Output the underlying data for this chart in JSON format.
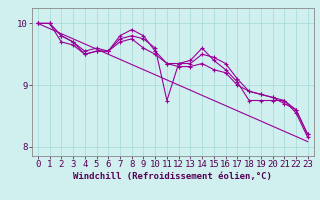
{
  "title": "",
  "xlabel": "Windchill (Refroidissement éolien,°C)",
  "ylabel": "",
  "bg_color": "#cff0ee",
  "grid_color": "#aadcdc",
  "line_color": "#990099",
  "x_hours": [
    0,
    1,
    2,
    3,
    4,
    5,
    6,
    7,
    8,
    9,
    10,
    11,
    12,
    13,
    14,
    15,
    16,
    17,
    18,
    19,
    20,
    21,
    22,
    23
  ],
  "series1": [
    10.0,
    10.0,
    9.8,
    9.7,
    9.5,
    9.55,
    9.55,
    9.75,
    9.8,
    9.75,
    9.6,
    8.75,
    9.35,
    9.4,
    9.6,
    9.4,
    9.25,
    9.05,
    8.75,
    8.75,
    8.75,
    8.75,
    8.55,
    8.15
  ],
  "series2": [
    10.0,
    10.0,
    9.7,
    9.65,
    9.5,
    9.55,
    9.55,
    9.7,
    9.75,
    9.6,
    9.5,
    9.35,
    9.3,
    9.3,
    9.35,
    9.25,
    9.2,
    9.0,
    8.9,
    8.85,
    8.8,
    8.7,
    8.6,
    8.2
  ],
  "series3": [
    10.0,
    10.0,
    9.8,
    9.7,
    9.55,
    9.6,
    9.55,
    9.8,
    9.9,
    9.8,
    9.55,
    9.35,
    9.35,
    9.35,
    9.5,
    9.45,
    9.35,
    9.1,
    8.9,
    8.85,
    8.8,
    8.75,
    8.6,
    8.2
  ],
  "regression_line": [
    10.0,
    9.917,
    9.833,
    9.75,
    9.667,
    9.583,
    9.5,
    9.417,
    9.333,
    9.25,
    9.167,
    9.083,
    9.0,
    8.917,
    8.833,
    8.75,
    8.667,
    8.583,
    8.5,
    8.417,
    8.333,
    8.25,
    8.167,
    8.083
  ],
  "ylim": [
    7.85,
    10.25
  ],
  "yticks": [
    8,
    9,
    10
  ],
  "xlabel_fontsize": 6.5,
  "tick_fontsize": 6.5
}
